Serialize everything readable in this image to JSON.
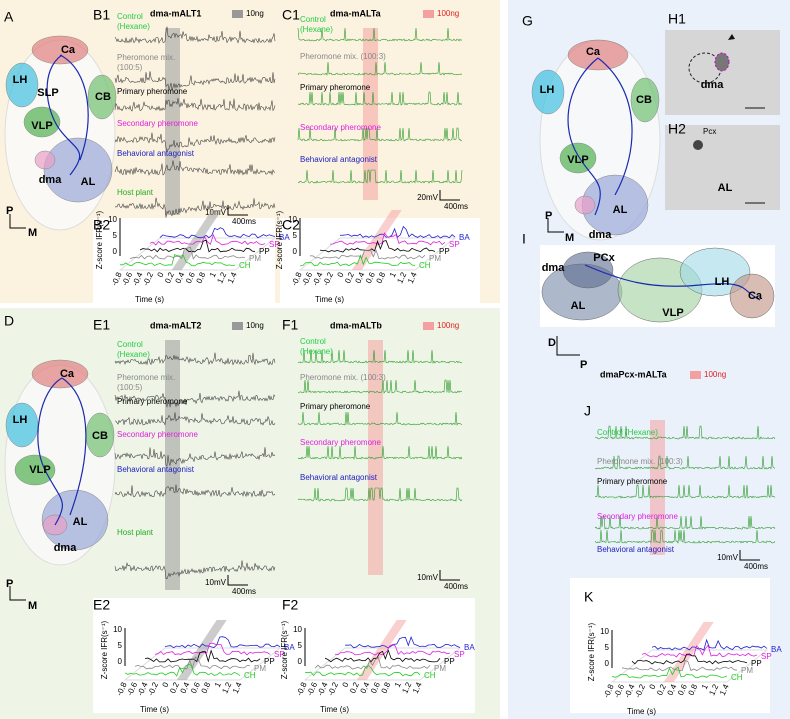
{
  "panel_labels": [
    "A",
    "B1",
    "C1",
    "B2",
    "C2",
    "D",
    "E1",
    "F1",
    "E2",
    "F2",
    "G",
    "H1",
    "H2",
    "I",
    "J",
    "K"
  ],
  "brains": [
    {
      "regions": [
        "Ca",
        "SLP",
        "LH",
        "CB",
        "VLP",
        "AL",
        "dma"
      ],
      "axes": [
        "P",
        "M"
      ]
    },
    {
      "regions": [
        "Ca",
        "LH",
        "CB",
        "VLP",
        "AL",
        "dma"
      ],
      "axes": [
        "P",
        "M"
      ]
    },
    {
      "regions": [
        "Ca",
        "LH",
        "CB",
        "VLP",
        "AL",
        "dma"
      ],
      "axes": [
        "P",
        "M"
      ]
    }
  ],
  "images": {
    "h1": [
      "dma"
    ],
    "h2": [
      "Pcx",
      "AL"
    ],
    "i": {
      "regions": [
        "dma",
        "PCx",
        "AL",
        "VLP",
        "LH",
        "Ca"
      ],
      "axes": [
        "D",
        "P"
      ]
    }
  },
  "recordings": [
    {
      "title": "dma-mALT1",
      "dose": "10ng",
      "stimuli": [
        [
          "Control",
          "(Hexane)"
        ],
        [
          "Pheromone mix.",
          "(100:5)"
        ],
        [
          "Primary pheromone"
        ],
        [
          "Secondary pheromone"
        ],
        [
          "Behavioral antagonist"
        ],
        [
          "Host plant"
        ]
      ],
      "scale": [
        "10mV",
        "400ms"
      ]
    },
    {
      "title": "dma-mALTa",
      "dose": "100ng",
      "stimuli": [
        [
          "Control",
          "(Hexane)"
        ],
        [
          "Pheromone mix. (100:3)"
        ],
        [
          "Primary pheromone"
        ],
        [
          "Secondary pheromone"
        ],
        [
          "Behavioral antagonist"
        ]
      ],
      "scale": [
        "20mV",
        "400ms"
      ]
    },
    {
      "title": "dma-mALT2",
      "dose": "10ng",
      "stimuli": [
        [
          "Control",
          "(Hexane)"
        ],
        [
          "Pheromone mix.",
          "(100:5)"
        ],
        [
          "Primary pheromone"
        ],
        [
          "Secondary pheromone"
        ],
        [
          "Behavioral antagonist"
        ],
        [
          "Host plant"
        ]
      ],
      "scale": [
        "10mV",
        "400ms"
      ]
    },
    {
      "title": "dma-mALTb",
      "dose": "100ng",
      "stimuli": [
        [
          "Control",
          "(Hexane)"
        ],
        [
          "Pheromone mix. (100:3)"
        ],
        [
          "Primary pheromone"
        ],
        [
          "Secondary pheromone"
        ],
        [
          "Behavioral antagonist"
        ]
      ],
      "scale": [
        "10mV",
        "400ms"
      ]
    },
    {
      "title": "dmaPcx-mALTa",
      "dose": "100ng",
      "stimuli": [
        [
          "Control (Hexane)"
        ],
        [
          "Pheromone mix. (100:3)"
        ],
        [
          "Primary pheromone"
        ],
        [
          "Secondary pheromone"
        ],
        [
          "Behavioral antagonist"
        ]
      ],
      "scale": [
        "10mV",
        "400ms"
      ]
    }
  ],
  "ifr_plots": [
    {
      "y_label": "Z-score IFR(s⁻¹)",
      "yticks": [
        "10",
        "5",
        "0"
      ],
      "xticks": [
        "-0.8",
        "-0.6",
        "-0.4",
        "-0.2",
        "0",
        "0.2",
        "0.4",
        "0.6",
        "0.8",
        "1",
        "1.2",
        "1.4"
      ],
      "series": [
        "BA",
        "SP",
        "PP",
        "PM",
        "CH"
      ],
      "x_label": "Time (s)"
    },
    {
      "y_label": "Z-score IFR(s⁻¹)",
      "yticks": [
        "10",
        "5",
        "0"
      ],
      "xticks": [
        "-0.8",
        "-0.6",
        "-0.4",
        "-0.2",
        "0",
        "0.2",
        "0.4",
        "0.6",
        "0.8",
        "1",
        "1.2",
        "1.4"
      ],
      "series": [
        "BA",
        "SP",
        "PP",
        "PM",
        "CH"
      ],
      "x_label": "Time (s)"
    },
    {
      "y_label": "Z-score IFR(s⁻¹)",
      "yticks": [
        "10",
        "5",
        "0"
      ],
      "xticks": [
        "-0.8",
        "-0.6",
        "-0.4",
        "-0.2",
        "0",
        "0.2",
        "0.4",
        "0.6",
        "0.8",
        "1",
        "1.2",
        "1.4"
      ],
      "series": [
        "BA",
        "SP",
        "PP",
        "PM",
        "CH"
      ],
      "x_label": "Time (s)"
    },
    {
      "y_label": "Z-score IFR(s⁻¹)",
      "yticks": [
        "10",
        "5",
        "0"
      ],
      "xticks": [
        "-0.8",
        "-0.6",
        "-0.4",
        "-0.2",
        "0",
        "0.2",
        "0.4",
        "0.6",
        "0.8",
        "1",
        "1.2",
        "1.4"
      ],
      "series": [
        "BA",
        "SP",
        "PP",
        "PM",
        "CH"
      ],
      "x_label": "Time (s)"
    },
    {
      "y_label": "Z-score IFR(s⁻¹)",
      "yticks": [
        "10",
        "5",
        "0"
      ],
      "xticks": [
        "-0.8",
        "-0.6",
        "-0.4",
        "-0.2",
        "0",
        "0.2",
        "0.4",
        "0.6",
        "0.8",
        "1",
        "1.2",
        "1.4"
      ],
      "series": [
        "BA",
        "SP",
        "PP",
        "PM",
        "CH"
      ],
      "x_label": "Time (s)"
    }
  ]
}
